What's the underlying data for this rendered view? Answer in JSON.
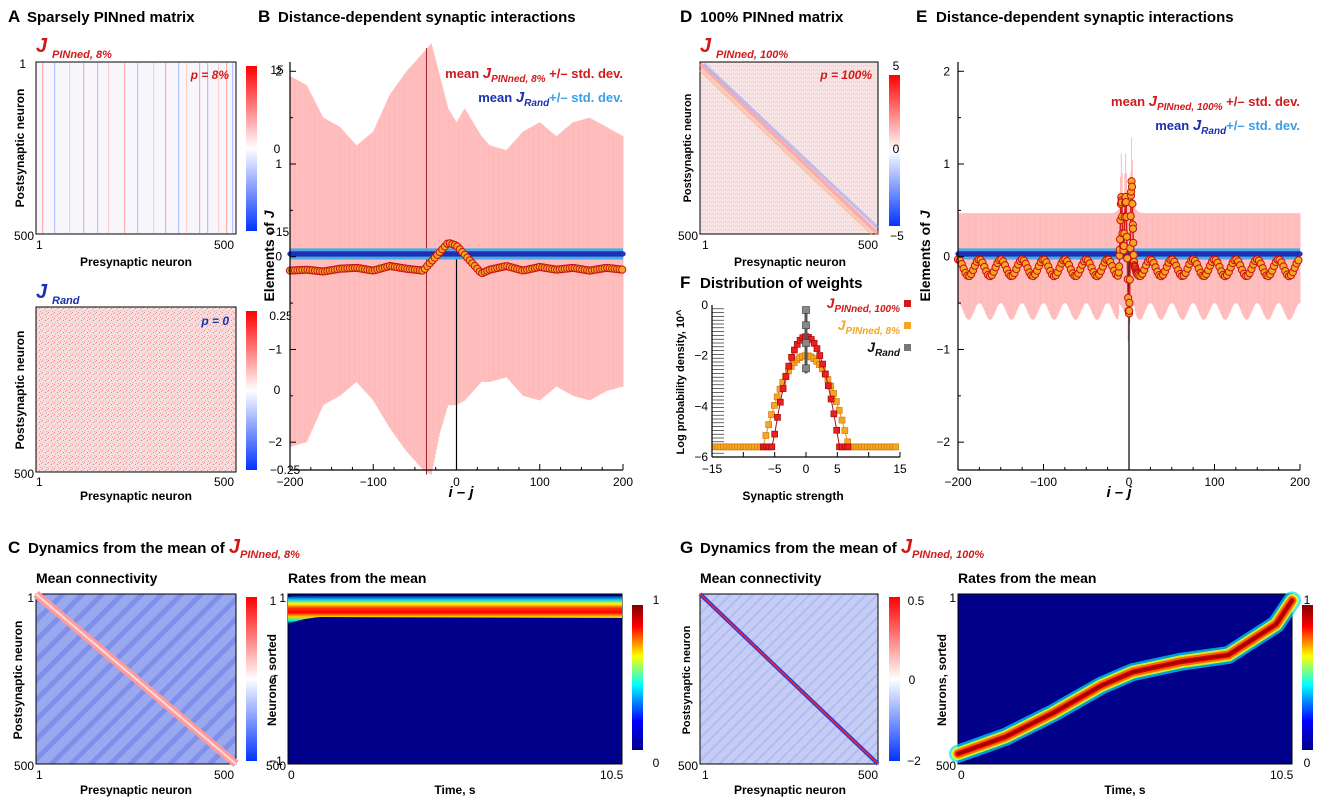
{
  "panels": {
    "A": {
      "letter": "A",
      "title": "Sparsely PINned matrix",
      "top": {
        "label_main": "J",
        "label_sub": "PINned, 8%",
        "p_text": "p = 8%",
        "cbar_ticks": [
          "15",
          "0",
          "−15"
        ],
        "ylabel": "Postsynaptic neuron",
        "xlabel": "Presynaptic neuron",
        "xticks": [
          "1",
          "500"
        ],
        "yticks": [
          "1",
          "500"
        ]
      },
      "bottom": {
        "label_main": "J",
        "label_sub": "Rand",
        "p_text": "p = 0",
        "cbar_ticks": [
          "0.25",
          "0",
          "−0.25"
        ],
        "ylabel": "Postsynaptic neuron",
        "xlabel": "Presynaptic neuron",
        "xticks": [
          "1",
          "500"
        ],
        "yticks": [
          "1",
          "500"
        ]
      }
    },
    "B": {
      "letter": "B",
      "title": "Distance-dependent synaptic interactions",
      "ylabel_pre": "Elements of ",
      "ylabel_j": "J",
      "xlabel": "i – j",
      "legend1_pre": "mean ",
      "legend1_j": "J",
      "legend1_sub": "PINned, 8%",
      "legend1_post": " +/– std. dev.",
      "legend2_pre": "mean ",
      "legend2_j": "J",
      "legend2_sub": "Rand",
      "legend2_post": "+/– std. dev.",
      "xticks": [
        "−200",
        "−100",
        "0",
        "100",
        "200"
      ],
      "yticks": [
        "2",
        "1",
        "0",
        "−1",
        "−2"
      ]
    },
    "C": {
      "letter": "C",
      "title_pre": "Dynamics from the mean of ",
      "title_j": "J",
      "title_sub": "PINned, 8%",
      "left_title": "Mean connectivity",
      "right_title": "Rates from the mean",
      "left_ylabel": "Postsynaptic neuron",
      "left_xlabel": "Presynaptic neuron",
      "right_ylabel": "Neurons, sorted",
      "right_xlabel": "Time, s",
      "left_xticks": [
        "1",
        "500"
      ],
      "left_yticks": [
        "1",
        "500"
      ],
      "left_cbar": [
        "1",
        "0",
        "−1"
      ],
      "right_xticks": [
        "0",
        "10.5"
      ],
      "right_yticks": [
        "1",
        "500"
      ],
      "right_cbar": [
        "1",
        "0"
      ]
    },
    "D": {
      "letter": "D",
      "title": "100% PINned matrix",
      "label_main": "J",
      "label_sub": "PINned, 100%",
      "p_text": "p = 100%",
      "cbar_ticks": [
        "5",
        "0",
        "−5"
      ],
      "ylabel": "Postsynaptic neuron",
      "xlabel": "Presynaptic neuron",
      "xticks": [
        "1",
        "500"
      ],
      "yticks": [
        "1",
        "500"
      ]
    },
    "E": {
      "letter": "E",
      "title": "Distance-dependent synaptic interactions",
      "ylabel_pre": "Elements of ",
      "ylabel_j": "J",
      "xlabel": "i – j",
      "legend1_pre": "mean ",
      "legend1_j": "J",
      "legend1_sub": "PINned, 100%",
      "legend1_post": " +/– std. dev.",
      "legend2_pre": "mean ",
      "legend2_j": "J",
      "legend2_sub": "Rand",
      "legend2_post": "+/– std. dev.",
      "xticks": [
        "−200",
        "−100",
        "0",
        "100",
        "200"
      ],
      "yticks": [
        "2",
        "1",
        "0",
        "−1",
        "−2"
      ]
    },
    "F": {
      "letter": "F",
      "title": "Distribution of weights",
      "ylabel": "Log probability density, 10^",
      "xlabel": "Synaptic strength",
      "xticks": [
        "−15",
        "−10",
        "−5",
        "0",
        "5",
        "10",
        "15"
      ],
      "yticks": [
        "0",
        "−2",
        "−4",
        "−6"
      ],
      "legend": [
        {
          "j": "J",
          "sub": "PINned, 100%"
        },
        {
          "j": "J",
          "sub": "PINned, 8%"
        },
        {
          "j": "J",
          "sub": "Rand"
        }
      ]
    },
    "G": {
      "letter": "G",
      "title_pre": "Dynamics from the mean of ",
      "title_j": "J",
      "title_sub": "PINned, 100%",
      "left_title": "Mean connectivity",
      "right_title": "Rates from the mean",
      "left_ylabel": "Postsynaptic neuron",
      "left_xlabel": "Presynaptic neuron",
      "right_ylabel": "Neurons, sorted",
      "right_xlabel": "Time, s",
      "left_xticks": [
        "1",
        "500"
      ],
      "left_yticks": [
        "1",
        "500"
      ],
      "left_cbar": [
        "0.5",
        "0",
        "−2"
      ],
      "right_xticks": [
        "0",
        "10.5"
      ],
      "right_yticks": [
        "1",
        "500"
      ],
      "right_cbar": [
        "1",
        "0"
      ]
    }
  },
  "colors": {
    "red": "#d11a1a",
    "blue": "#1b2fb0",
    "orange": "#f5a623",
    "lightred": "#ffb8b8",
    "lightblue": "#4aa8e8",
    "gray": "#555555"
  },
  "chart_data": [
    {
      "panel": "B",
      "type": "scatter",
      "title": "Distance-dependent synaptic interactions",
      "xlabel": "i – j",
      "ylabel": "Elements of J",
      "xlim": [
        -200,
        200
      ],
      "ylim": [
        -2.3,
        2.1
      ],
      "series": [
        {
          "name": "mean J PINned, 8%",
          "x": [
            -200,
            -180,
            -160,
            -140,
            -120,
            -100,
            -80,
            -60,
            -40,
            -30,
            -20,
            -10,
            0,
            10,
            20,
            30,
            40,
            60,
            80,
            100,
            120,
            140,
            160,
            180,
            200
          ],
          "y": [
            -0.15,
            -0.14,
            -0.16,
            -0.13,
            -0.12,
            -0.15,
            -0.1,
            -0.13,
            -0.15,
            -0.05,
            0.05,
            0.15,
            0.12,
            0.02,
            -0.08,
            -0.18,
            -0.14,
            -0.1,
            -0.15,
            -0.11,
            -0.14,
            -0.12,
            -0.15,
            -0.12,
            -0.14
          ],
          "std_upper": [
            1.95,
            1.85,
            1.5,
            1.4,
            1.2,
            1.35,
            1.75,
            2.0,
            2.2,
            2.3,
            1.95,
            1.6,
            1.45,
            1.6,
            1.45,
            1.3,
            1.2,
            1.15,
            1.35,
            1.45,
            1.3,
            1.45,
            1.5,
            1.4,
            1.3
          ],
          "std_lower": [
            -2.05,
            -2.0,
            -1.6,
            -1.5,
            -1.35,
            -1.55,
            -1.85,
            -2.1,
            -2.3,
            -2.35,
            -1.9,
            -1.6,
            -1.6,
            -1.55,
            -1.45,
            -1.35,
            -1.35,
            -1.3,
            -1.5,
            -1.55,
            -1.4,
            -1.5,
            -1.55,
            -1.45,
            -1.4
          ]
        },
        {
          "name": "mean J Rand",
          "x": [
            -200,
            200
          ],
          "y": [
            0.03,
            0.03
          ],
          "std": 0.06
        }
      ]
    },
    {
      "panel": "E",
      "type": "scatter",
      "title": "Distance-dependent synaptic interactions",
      "xlabel": "i – j",
      "ylabel": "Elements of J",
      "xlim": [
        -200,
        200
      ],
      "ylim": [
        -2.3,
        2.1
      ],
      "series": [
        {
          "name": "mean J PINned, 100%",
          "oscillation_period": 25,
          "oscillation_amplitude": 0.09,
          "baseline": -0.12,
          "peaks": [
            {
              "x": -9,
              "y": 0.7
            },
            {
              "x": -4,
              "y": 0.6
            },
            {
              "x": 0,
              "y": -0.75
            },
            {
              "x": 3,
              "y": 0.78
            },
            {
              "x": 7,
              "y": -0.1
            }
          ],
          "std_halfwidth": 0.47
        },
        {
          "name": "mean J Rand",
          "x": [
            -200,
            200
          ],
          "y": [
            0.03,
            0.03
          ],
          "std": 0.06
        }
      ]
    },
    {
      "panel": "F",
      "type": "scatter",
      "title": "Distribution of weights",
      "xlabel": "Synaptic strength",
      "ylabel": "Log probability density, 10^",
      "xlim": [
        -15,
        15
      ],
      "ylim": [
        -6,
        0
      ],
      "series": [
        {
          "name": "J PINned, 100%",
          "peak": -1.25,
          "width": 6.5,
          "floor": -5.6
        },
        {
          "name": "J PINned, 8%",
          "peak": -2.0,
          "width": 13,
          "floor": -5.6
        },
        {
          "name": "J Rand",
          "x": [
            0,
            0,
            0,
            0
          ],
          "y": [
            -0.2,
            -0.8,
            -1.5,
            -2.5
          ]
        }
      ]
    },
    {
      "panel": "C-right",
      "type": "heatmap",
      "title": "Rates from the mean",
      "xlabel": "Time, s",
      "ylabel": "Neurons, sorted",
      "xlim": [
        0,
        10.5
      ],
      "ylim": [
        1,
        500
      ],
      "band_neuron_start": 40,
      "band_neuron_end": 35
    },
    {
      "panel": "G-right",
      "type": "heatmap",
      "title": "Rates from the mean",
      "xlabel": "Time, s",
      "ylabel": "Neurons, sorted",
      "xlim": [
        0,
        10.5
      ],
      "ylim": [
        1,
        500
      ],
      "ridge": [
        [
          0,
          470
        ],
        [
          1.5,
          420
        ],
        [
          3,
          350
        ],
        [
          4.5,
          270
        ],
        [
          5.5,
          230
        ],
        [
          7,
          200
        ],
        [
          8.5,
          180
        ],
        [
          10,
          90
        ],
        [
          10.5,
          20
        ]
      ]
    }
  ]
}
